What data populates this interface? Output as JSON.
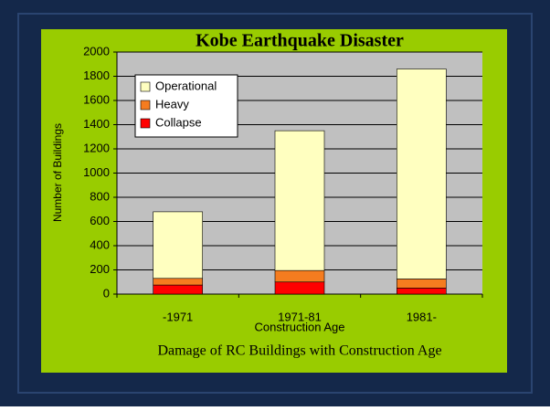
{
  "chart_data": {
    "type": "stacked_bar",
    "title": "Kobe Earthquake Disaster",
    "caption": "Damage  of RC Buildings with Construction Age",
    "x_label": "Construction Age",
    "y_label": "Number of Buildings",
    "categories": [
      "-1971",
      "1971-81",
      "1981-"
    ],
    "series": [
      {
        "name": "Collapse",
        "color": "#ff0000",
        "values": [
          75,
          100,
          50
        ]
      },
      {
        "name": "Heavy",
        "color": "#f57c1f",
        "values": [
          55,
          95,
          75
        ]
      },
      {
        "name": "Operational",
        "color": "#ffffc0",
        "values": [
          550,
          1155,
          1735
        ]
      }
    ],
    "ylim": [
      0,
      2000
    ],
    "yticks": [
      0,
      200,
      400,
      600,
      800,
      1000,
      1200,
      1400,
      1600,
      1800,
      2000
    ],
    "grid": true
  }
}
